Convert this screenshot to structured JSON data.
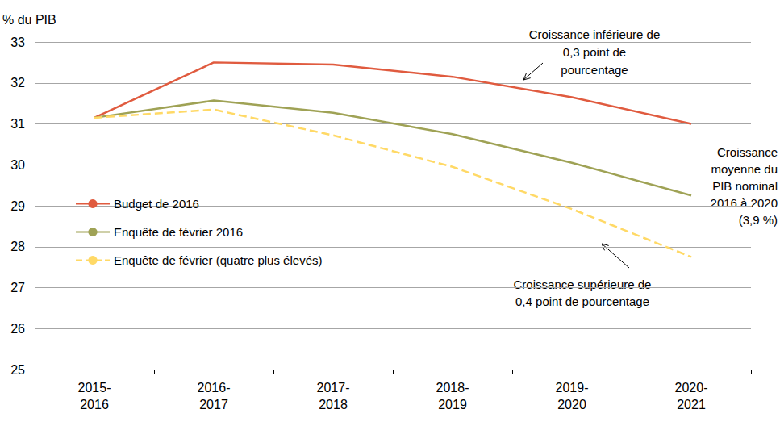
{
  "chart_data": {
    "type": "line",
    "y_label": "% du PIB",
    "categories": [
      "2015-\n2016",
      "2016-\n2017",
      "2017-\n2018",
      "2018-\n2019",
      "2019-\n2020",
      "2020-\n2021"
    ],
    "series": [
      {
        "name": "Budget de 2016",
        "color": "#E05B3F",
        "line_style": "solid",
        "values": [
          31.15,
          32.5,
          32.45,
          32.15,
          31.65,
          31.0
        ]
      },
      {
        "name": "Enquête de février 2016",
        "color": "#9FA255",
        "line_style": "solid",
        "values": [
          31.15,
          31.57,
          31.27,
          30.75,
          30.05,
          29.25
        ]
      },
      {
        "name": "Enquête de février (quatre plus élevés)",
        "color": "#FFD966",
        "line_style": "dashed",
        "values": [
          31.15,
          31.35,
          30.72,
          29.95,
          28.92,
          27.75
        ]
      }
    ],
    "ylim": [
      25,
      33
    ],
    "yticks": [
      25,
      26,
      27,
      28,
      29,
      30,
      31,
      32,
      33
    ],
    "grid": true,
    "legend": "left",
    "annotations": [
      {
        "text": "Croissance inférieure de\n0,3 point de\npourcentage"
      },
      {
        "text": "Croissance\nmoyenne du\nPIB nominal\n2016 à 2020\n(3,9 %)"
      },
      {
        "text": "Croissance supérieure de\n0,4 point de pourcentage"
      }
    ]
  }
}
